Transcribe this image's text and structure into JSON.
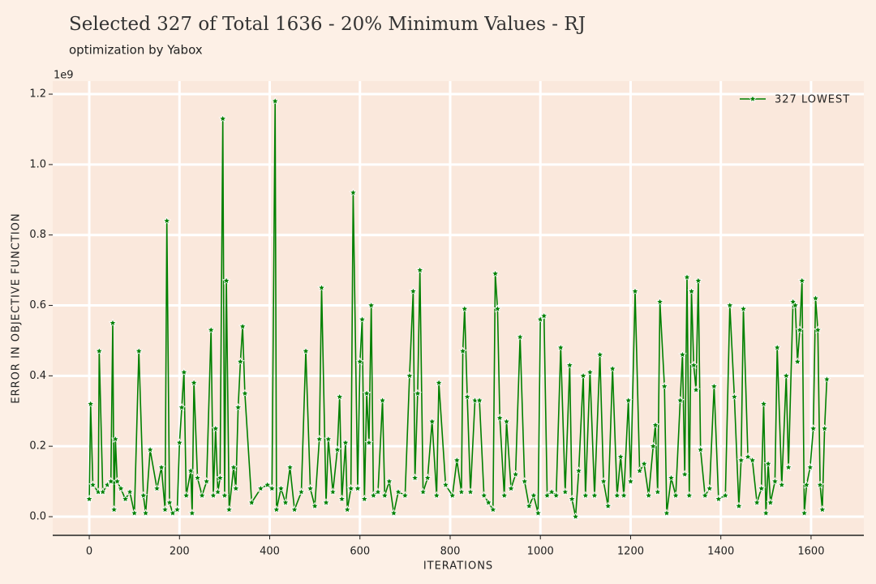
{
  "chart_data": {
    "type": "line",
    "title": "Selected 327 of Total 1636  - 20% Minimum Values - RJ",
    "subtitle": "optimization by Yabox",
    "x_label": "ITERATIONS",
    "y_label": "ERROR IN OBJECTIVE FUNCTION",
    "y_offset_label": "1e9",
    "xlim": [
      -81,
      1717
    ],
    "ylim": [
      -0.053,
      1.237
    ],
    "xticks": [
      0,
      200,
      400,
      600,
      800,
      1000,
      1200,
      1400,
      1600
    ],
    "yticks": [
      {
        "value": 0,
        "label": "0.0"
      },
      0.2,
      0.4,
      0.6,
      0.8,
      {
        "value": 1,
        "label": "1.0"
      },
      1.2
    ],
    "grid": true,
    "legend": "upper right",
    "x": [
      0,
      3,
      8,
      20,
      22,
      30,
      40,
      48,
      52,
      55,
      58,
      62,
      70,
      80,
      90,
      100,
      110,
      120,
      125,
      135,
      150,
      160,
      168,
      172,
      178,
      185,
      195,
      200,
      205,
      210,
      215,
      225,
      228,
      232,
      240,
      250,
      260,
      270,
      275,
      280,
      285,
      290,
      296,
      300,
      304,
      310,
      320,
      325,
      330,
      335,
      340,
      345,
      360,
      380,
      395,
      405,
      412,
      415,
      425,
      435,
      445,
      455,
      470,
      480,
      490,
      500,
      510,
      515,
      525,
      530,
      540,
      550,
      555,
      560,
      568,
      572,
      580,
      585,
      595,
      600,
      605,
      610,
      615,
      620,
      625,
      630,
      640,
      650,
      655,
      665,
      675,
      685,
      700,
      710,
      718,
      722,
      728,
      733,
      740,
      750,
      760,
      770,
      775,
      790,
      805,
      815,
      825,
      828,
      832,
      838,
      845,
      855,
      865,
      875,
      885,
      895,
      900,
      905,
      910,
      920,
      925,
      935,
      945,
      955,
      965,
      975,
      985,
      995,
      1000,
      1008,
      1015,
      1025,
      1035,
      1045,
      1055,
      1065,
      1070,
      1078,
      1085,
      1095,
      1100,
      1110,
      1120,
      1132,
      1140,
      1150,
      1160,
      1170,
      1178,
      1185,
      1195,
      1200,
      1210,
      1220,
      1230,
      1240,
      1250,
      1255,
      1260,
      1265,
      1275,
      1280,
      1290,
      1300,
      1310,
      1315,
      1320,
      1325,
      1330,
      1335,
      1340,
      1345,
      1350,
      1355,
      1365,
      1375,
      1385,
      1395,
      1410,
      1420,
      1430,
      1440,
      1445,
      1450,
      1460,
      1470,
      1480,
      1490,
      1495,
      1500,
      1505,
      1510,
      1520,
      1525,
      1535,
      1545,
      1550,
      1560,
      1565,
      1570,
      1575,
      1580,
      1585,
      1590,
      1598,
      1605,
      1610,
      1615,
      1620,
      1625,
      1630,
      1635
    ],
    "series": [
      {
        "name": "327 LOWEST",
        "color": "#008000",
        "values": [
          0.05,
          0.32,
          0.09,
          0.07,
          0.47,
          0.07,
          0.09,
          0.1,
          0.55,
          0.02,
          0.22,
          0.1,
          0.08,
          0.05,
          0.07,
          0.01,
          0.47,
          0.06,
          0.01,
          0.19,
          0.08,
          0.14,
          0.02,
          0.84,
          0.04,
          0.01,
          0.02,
          0.21,
          0.31,
          0.41,
          0.06,
          0.13,
          0.01,
          0.38,
          0.11,
          0.06,
          0.1,
          0.53,
          0.06,
          0.25,
          0.07,
          0.11,
          1.13,
          0.06,
          0.67,
          0.02,
          0.14,
          0.08,
          0.31,
          0.44,
          0.54,
          0.35,
          0.04,
          0.08,
          0.09,
          0.08,
          1.18,
          0.02,
          0.08,
          0.04,
          0.14,
          0.02,
          0.07,
          0.47,
          0.08,
          0.03,
          0.22,
          0.65,
          0.04,
          0.22,
          0.07,
          0.19,
          0.34,
          0.05,
          0.21,
          0.02,
          0.08,
          0.92,
          0.08,
          0.44,
          0.56,
          0.05,
          0.35,
          0.21,
          0.6,
          0.06,
          0.07,
          0.33,
          0.06,
          0.1,
          0.01,
          0.07,
          0.06,
          0.4,
          0.64,
          0.11,
          0.35,
          0.7,
          0.07,
          0.11,
          0.27,
          0.06,
          0.38,
          0.09,
          0.06,
          0.16,
          0.07,
          0.47,
          0.59,
          0.34,
          0.07,
          0.33,
          0.33,
          0.06,
          0.04,
          0.02,
          0.69,
          0.59,
          0.28,
          0.06,
          0.27,
          0.08,
          0.12,
          0.51,
          0.1,
          0.03,
          0.06,
          0.01,
          0.56,
          0.57,
          0.06,
          0.07,
          0.06,
          0.48,
          0.07,
          0.43,
          0.05,
          0.0,
          0.13,
          0.4,
          0.06,
          0.41,
          0.06,
          0.46,
          0.1,
          0.03,
          0.42,
          0.06,
          0.17,
          0.06,
          0.33,
          0.1,
          0.64,
          0.13,
          0.15,
          0.06,
          0.2,
          0.26,
          0.07,
          0.61,
          0.37,
          0.01,
          0.11,
          0.06,
          0.33,
          0.46,
          0.12,
          0.68,
          0.06,
          0.64,
          0.43,
          0.36,
          0.67,
          0.19,
          0.06,
          0.08,
          0.37,
          0.05,
          0.06,
          0.6,
          0.34,
          0.03,
          0.16,
          0.59,
          0.17,
          0.16,
          0.04,
          0.08,
          0.32,
          0.01,
          0.15,
          0.04,
          0.1,
          0.48,
          0.09,
          0.4,
          0.14,
          0.61,
          0.6,
          0.44,
          0.53,
          0.67,
          0.01,
          0.09,
          0.14,
          0.25,
          0.62,
          0.53,
          0.09,
          0.02,
          0.25,
          0.39
        ]
      }
    ]
  }
}
